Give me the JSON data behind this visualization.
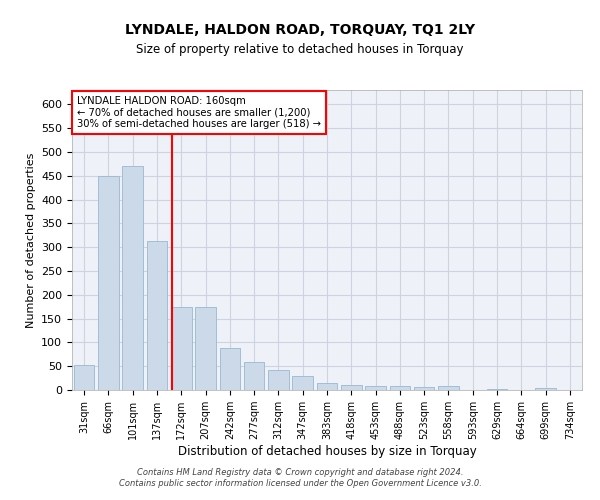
{
  "title": "LYNDALE, HALDON ROAD, TORQUAY, TQ1 2LY",
  "subtitle": "Size of property relative to detached houses in Torquay",
  "xlabel": "Distribution of detached houses by size in Torquay",
  "ylabel": "Number of detached properties",
  "categories": [
    "31sqm",
    "66sqm",
    "101sqm",
    "137sqm",
    "172sqm",
    "207sqm",
    "242sqm",
    "277sqm",
    "312sqm",
    "347sqm",
    "383sqm",
    "418sqm",
    "453sqm",
    "488sqm",
    "523sqm",
    "558sqm",
    "593sqm",
    "629sqm",
    "664sqm",
    "699sqm",
    "734sqm"
  ],
  "values": [
    52,
    450,
    470,
    312,
    175,
    175,
    88,
    58,
    42,
    30,
    15,
    10,
    8,
    8,
    7,
    8,
    0,
    3,
    0,
    4,
    0
  ],
  "bar_color": "#ccd9e8",
  "bar_edge_color": "#99b8d0",
  "ylim": [
    0,
    630
  ],
  "yticks": [
    0,
    50,
    100,
    150,
    200,
    250,
    300,
    350,
    400,
    450,
    500,
    550,
    600
  ],
  "annotation_title": "LYNDALE HALDON ROAD: 160sqm",
  "annotation_line1": "← 70% of detached houses are smaller (1,200)",
  "annotation_line2": "30% of semi-detached houses are larger (518) →",
  "footer_line1": "Contains HM Land Registry data © Crown copyright and database right 2024.",
  "footer_line2": "Contains public sector information licensed under the Open Government Licence v3.0.",
  "grid_color": "#ccd4e0",
  "background_color": "#eef2f8",
  "red_line_x": 3.6
}
